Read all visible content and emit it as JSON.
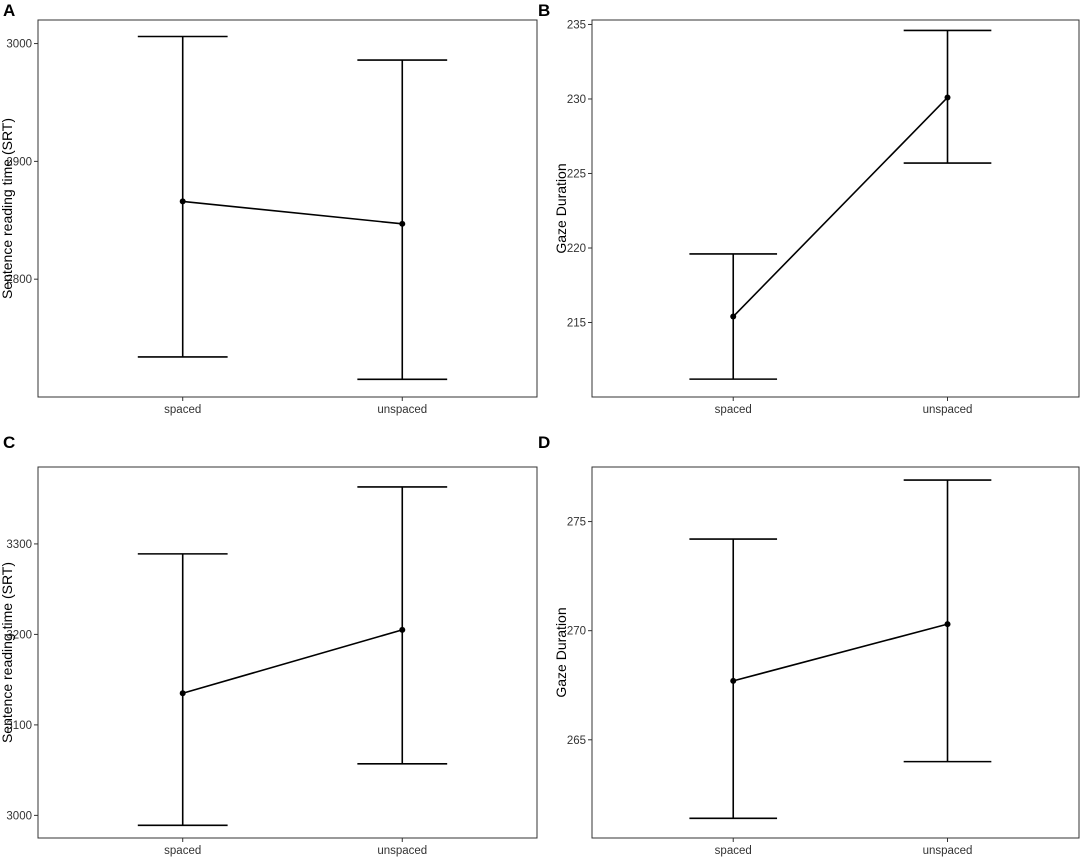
{
  "chart_data": [
    {
      "panel": "A",
      "type": "line",
      "categories": [
        "spaced",
        "unspaced"
      ],
      "ylabel": "Sentence reading time (SRT)",
      "xlabel": "",
      "ylim": [
        2700,
        3020
      ],
      "yticks": [
        2800,
        2900,
        3000
      ],
      "series": [
        {
          "values": [
            2866,
            2847
          ],
          "lower": [
            2734,
            2715
          ],
          "upper": [
            3006,
            2986
          ]
        }
      ]
    },
    {
      "panel": "B",
      "type": "line",
      "categories": [
        "spaced",
        "unspaced"
      ],
      "ylabel": "Gaze Duration",
      "xlabel": "",
      "ylim": [
        210,
        235.3
      ],
      "yticks": [
        215,
        220,
        225,
        230,
        235
      ],
      "series": [
        {
          "values": [
            215.4,
            230.1
          ],
          "lower": [
            211.2,
            225.7
          ],
          "upper": [
            219.6,
            234.6
          ]
        }
      ]
    },
    {
      "panel": "C",
      "type": "line",
      "categories": [
        "spaced",
        "unspaced"
      ],
      "ylabel": "Sentence reading time (SRT)",
      "xlabel": "",
      "ylim": [
        2975,
        3385
      ],
      "yticks": [
        3000,
        3100,
        3200,
        3300
      ],
      "series": [
        {
          "values": [
            3135,
            3205
          ],
          "lower": [
            2989,
            3057
          ],
          "upper": [
            3289,
            3363
          ]
        }
      ]
    },
    {
      "panel": "D",
      "type": "line",
      "categories": [
        "spaced",
        "unspaced"
      ],
      "ylabel": "Gaze Duration",
      "xlabel": "",
      "ylim": [
        260.5,
        277.5
      ],
      "yticks": [
        265,
        270,
        275
      ],
      "series": [
        {
          "values": [
            267.7,
            270.3
          ],
          "lower": [
            261.4,
            264.0
          ],
          "upper": [
            274.2,
            276.9
          ]
        }
      ]
    }
  ]
}
